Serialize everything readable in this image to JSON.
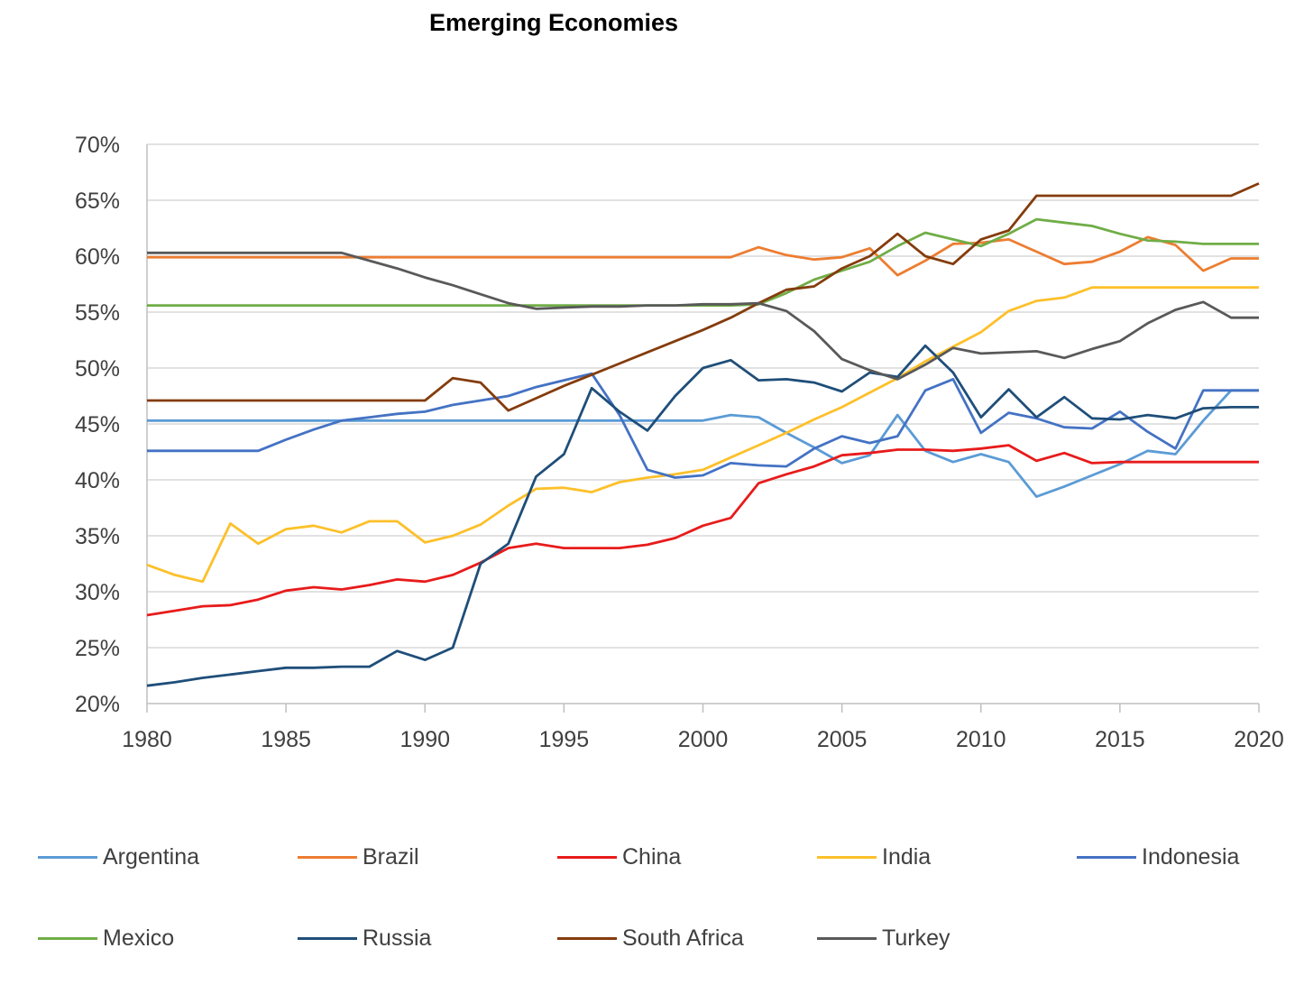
{
  "chart_data": {
    "type": "line",
    "title": "Emerging Economies",
    "xlabel": "",
    "ylabel": "",
    "xlim": [
      1980,
      2020
    ],
    "ylim": [
      20,
      70
    ],
    "y_ticks": [
      "20%",
      "25%",
      "30%",
      "35%",
      "40%",
      "45%",
      "50%",
      "55%",
      "60%",
      "65%",
      "70%"
    ],
    "x_ticks": [
      "1980",
      "1985",
      "1990",
      "1995",
      "2000",
      "2005",
      "2010",
      "2015",
      "2020"
    ],
    "gridlines": "horizontal",
    "legend_position": "bottom",
    "x": [
      1980,
      1981,
      1982,
      1983,
      1984,
      1985,
      1986,
      1987,
      1988,
      1989,
      1990,
      1991,
      1992,
      1993,
      1994,
      1995,
      1996,
      1997,
      1998,
      1999,
      2000,
      2001,
      2002,
      2003,
      2004,
      2005,
      2006,
      2007,
      2008,
      2009,
      2010,
      2011,
      2012,
      2013,
      2014,
      2015,
      2016,
      2017,
      2018,
      2019,
      2020
    ],
    "series": [
      {
        "name": "Argentina",
        "color": "#5b9bd5",
        "values": [
          45.3,
          45.3,
          45.3,
          45.3,
          45.3,
          45.3,
          45.3,
          45.3,
          45.3,
          45.3,
          45.3,
          45.3,
          45.3,
          45.3,
          45.3,
          45.3,
          45.3,
          45.3,
          45.3,
          45.3,
          45.3,
          45.8,
          45.6,
          44.2,
          42.9,
          41.5,
          42.2,
          45.8,
          42.6,
          41.6,
          42.3,
          41.6,
          38.5,
          39.4,
          40.4,
          41.4,
          42.6,
          42.3,
          45.3,
          48.0,
          48.0
        ]
      },
      {
        "name": "Brazil",
        "color": "#ed7d31",
        "values": [
          59.9,
          59.9,
          59.9,
          59.9,
          59.9,
          59.9,
          59.9,
          59.9,
          59.9,
          59.9,
          59.9,
          59.9,
          59.9,
          59.9,
          59.9,
          59.9,
          59.9,
          59.9,
          59.9,
          59.9,
          59.9,
          59.9,
          60.8,
          60.1,
          59.7,
          59.9,
          60.7,
          58.3,
          59.6,
          61.1,
          61.2,
          61.5,
          60.4,
          59.3,
          59.5,
          60.4,
          61.7,
          61.0,
          58.7,
          59.8,
          59.8
        ]
      },
      {
        "name": "China",
        "color": "#e81b1b",
        "values": [
          27.9,
          28.3,
          28.7,
          28.8,
          29.3,
          30.1,
          30.4,
          30.2,
          30.6,
          31.1,
          30.9,
          31.5,
          32.6,
          33.9,
          34.3,
          33.9,
          33.9,
          33.9,
          34.2,
          34.8,
          35.9,
          36.6,
          39.7,
          40.5,
          41.2,
          42.2,
          42.4,
          42.7,
          42.7,
          42.6,
          42.8,
          43.1,
          41.7,
          42.4,
          41.5,
          41.6,
          41.6,
          41.6,
          41.6,
          41.6,
          41.6
        ]
      },
      {
        "name": "India",
        "color": "#fdc02a",
        "values": [
          32.4,
          31.5,
          30.9,
          36.1,
          34.3,
          35.6,
          35.9,
          35.3,
          36.3,
          36.3,
          34.4,
          35.0,
          36.0,
          37.7,
          39.2,
          39.3,
          38.9,
          39.8,
          40.2,
          40.5,
          40.9,
          42.0,
          43.1,
          44.2,
          45.4,
          46.5,
          47.8,
          49.1,
          50.6,
          51.9,
          53.2,
          55.1,
          56.0,
          56.3,
          57.2,
          57.2,
          57.2,
          57.2,
          57.2,
          57.2,
          57.2
        ]
      },
      {
        "name": "Indonesia",
        "color": "#4472c4",
        "values": [
          42.6,
          42.6,
          42.6,
          42.6,
          42.6,
          43.6,
          44.5,
          45.3,
          45.6,
          45.9,
          46.1,
          46.7,
          47.1,
          47.5,
          48.3,
          48.9,
          49.5,
          45.8,
          40.9,
          40.2,
          40.4,
          41.5,
          41.3,
          41.2,
          42.8,
          43.9,
          43.3,
          43.9,
          48.0,
          49.0,
          44.2,
          46.0,
          45.5,
          44.7,
          44.6,
          46.1,
          44.3,
          42.8,
          48.0,
          48.0,
          48.0
        ]
      },
      {
        "name": "Mexico",
        "color": "#70ad47",
        "values": [
          55.6,
          55.6,
          55.6,
          55.6,
          55.6,
          55.6,
          55.6,
          55.6,
          55.6,
          55.6,
          55.6,
          55.6,
          55.6,
          55.6,
          55.6,
          55.6,
          55.6,
          55.6,
          55.6,
          55.6,
          55.6,
          55.6,
          55.7,
          56.7,
          57.9,
          58.7,
          59.5,
          60.9,
          62.1,
          61.5,
          60.9,
          62.0,
          63.3,
          63.0,
          62.7,
          62.0,
          61.4,
          61.3,
          61.1,
          61.1,
          61.1
        ]
      },
      {
        "name": "Russia",
        "color": "#1f4e79",
        "values": [
          21.6,
          21.9,
          22.3,
          22.6,
          22.9,
          23.2,
          23.2,
          23.3,
          23.3,
          24.7,
          23.9,
          25.0,
          32.5,
          34.3,
          40.3,
          42.3,
          48.2,
          46.1,
          44.4,
          47.5,
          50.0,
          50.7,
          48.9,
          49.0,
          48.7,
          47.9,
          49.6,
          49.2,
          52.0,
          49.6,
          45.6,
          48.1,
          45.6,
          47.4,
          45.5,
          45.4,
          45.8,
          45.5,
          46.4,
          46.5,
          46.5
        ]
      },
      {
        "name": "South Africa",
        "color": "#843c0c",
        "values": [
          47.1,
          47.1,
          47.1,
          47.1,
          47.1,
          47.1,
          47.1,
          47.1,
          47.1,
          47.1,
          47.1,
          49.1,
          48.7,
          46.2,
          47.3,
          48.4,
          49.4,
          50.4,
          51.4,
          52.4,
          53.4,
          54.5,
          55.8,
          57.0,
          57.3,
          58.9,
          60.0,
          62.0,
          60.0,
          59.3,
          61.5,
          62.3,
          65.4,
          65.4,
          65.4,
          65.4,
          65.4,
          65.4,
          65.4,
          65.4,
          66.5
        ]
      },
      {
        "name": "Turkey",
        "color": "#595959",
        "values": [
          60.3,
          60.3,
          60.3,
          60.3,
          60.3,
          60.3,
          60.3,
          60.3,
          59.6,
          58.9,
          58.1,
          57.4,
          56.6,
          55.8,
          55.3,
          55.4,
          55.5,
          55.5,
          55.6,
          55.6,
          55.7,
          55.7,
          55.8,
          55.1,
          53.3,
          50.8,
          49.8,
          49.0,
          50.3,
          51.8,
          51.3,
          51.4,
          51.5,
          50.9,
          51.7,
          52.4,
          54.0,
          55.2,
          55.9,
          54.5,
          54.5
        ]
      }
    ]
  }
}
